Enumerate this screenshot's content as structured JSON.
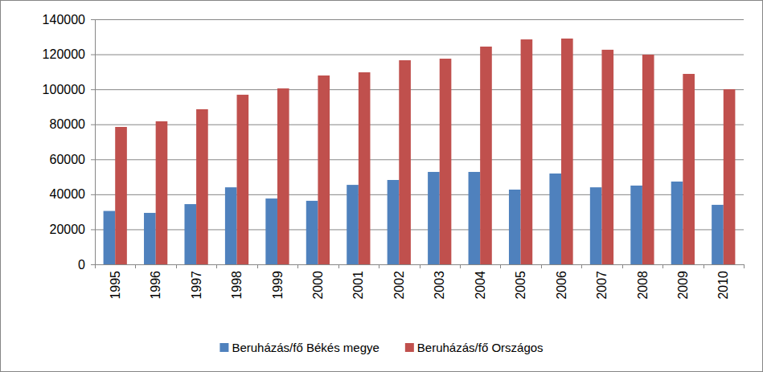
{
  "chart_data": {
    "type": "bar",
    "categories": [
      "1995",
      "1996",
      "1997",
      "1998",
      "1999",
      "2000",
      "2001",
      "2002",
      "2003",
      "2004",
      "2005",
      "2006",
      "2007",
      "2008",
      "2009",
      "2010"
    ],
    "series": [
      {
        "name": "Beruházás/fő Békés megye",
        "color": "#4f81bd",
        "values": [
          30500,
          29400,
          34400,
          44000,
          37600,
          36300,
          45400,
          48200,
          52800,
          52800,
          42700,
          51900,
          44000,
          45000,
          47300,
          34000
        ]
      },
      {
        "name": "Beruházás/fő Országos",
        "color": "#c0504d",
        "values": [
          78500,
          81700,
          88600,
          96900,
          100500,
          107900,
          109700,
          116600,
          117500,
          124400,
          128500,
          129000,
          122600,
          119800,
          108800,
          100000
        ]
      }
    ],
    "ylim": [
      0,
      140000
    ],
    "yticks": [
      0,
      20000,
      40000,
      60000,
      80000,
      100000,
      120000,
      140000
    ],
    "grid": true,
    "legend": "bottom"
  }
}
